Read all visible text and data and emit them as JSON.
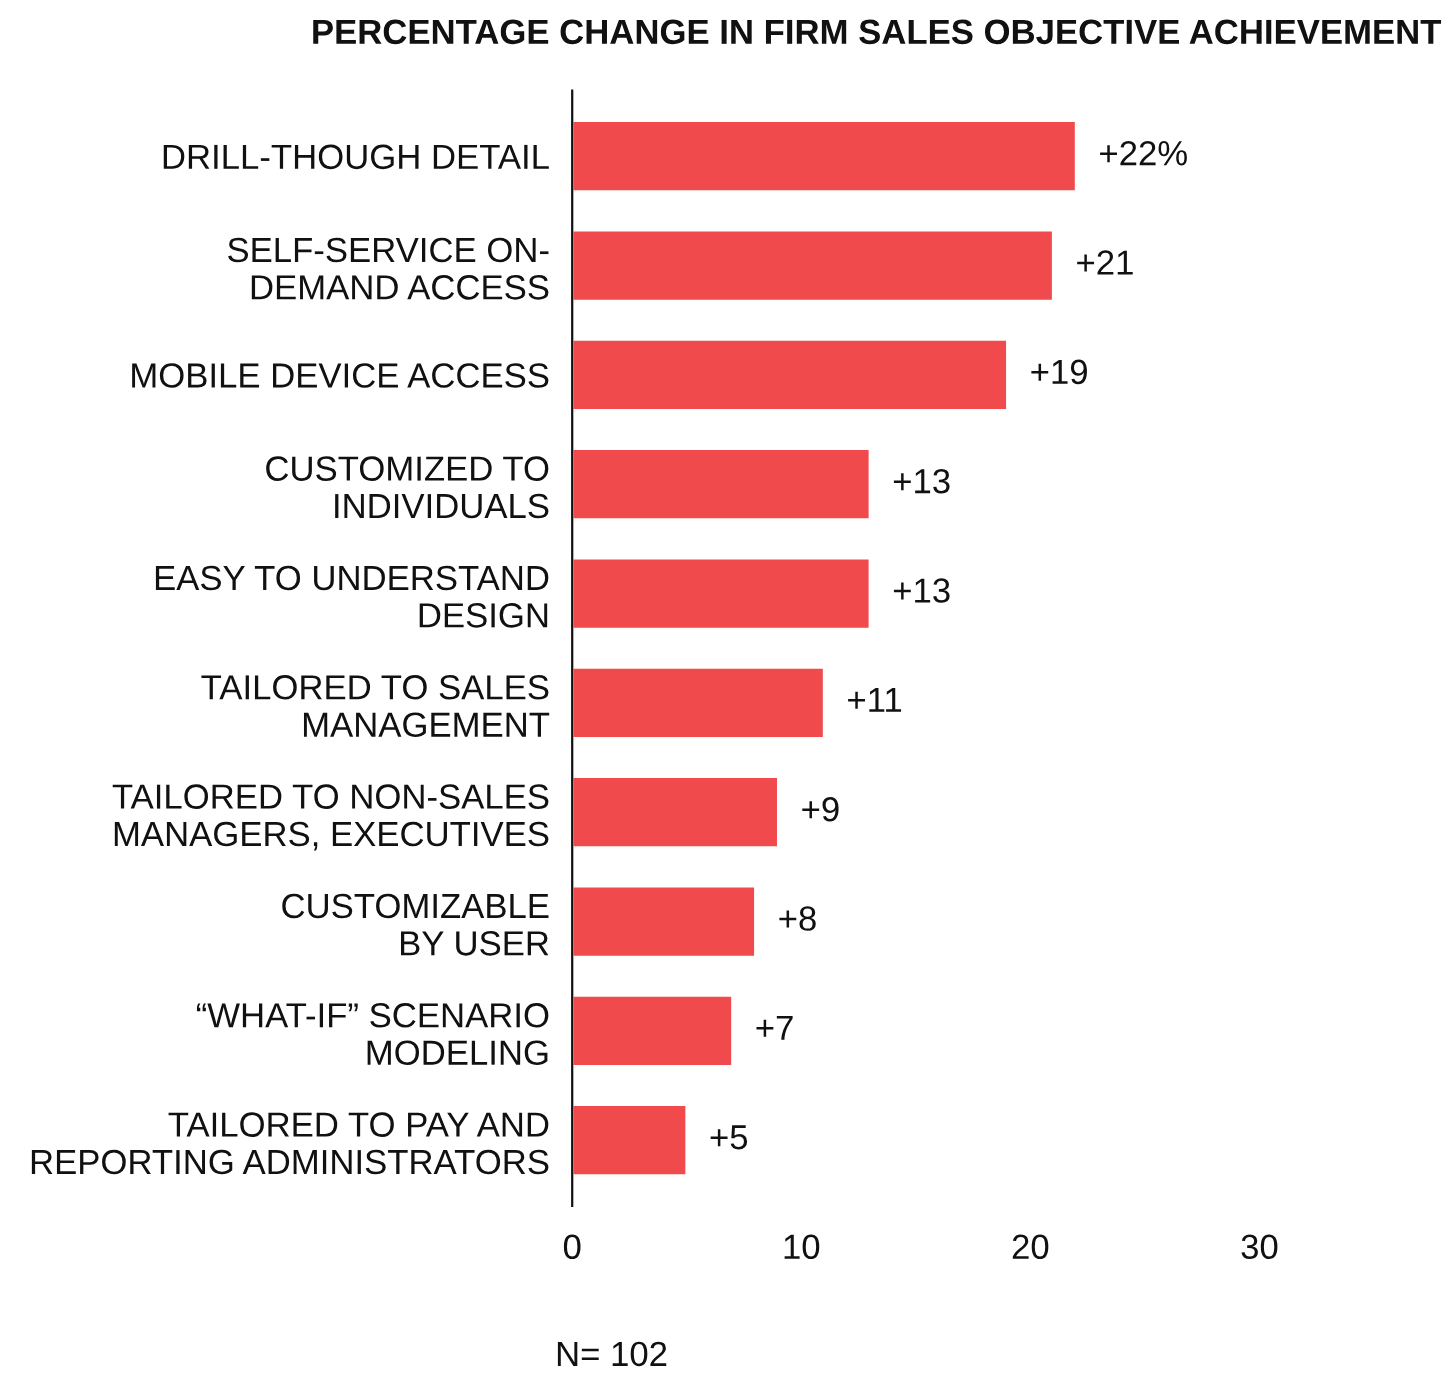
{
  "chart_data": {
    "type": "bar",
    "orientation": "horizontal",
    "title": "PERCENTAGE CHANGE IN FIRM SALES OBJECTIVE ACHIEVEMENT",
    "categories": [
      "DRILL-THOUGH DETAIL",
      "SELF-SERVICE ON-\nDEMAND ACCESS",
      "MOBILE DEVICE ACCESS",
      "CUSTOMIZED TO\nINDIVIDUALS",
      "EASY TO UNDERSTAND\nDESIGN",
      "TAILORED TO SALES\nMANAGEMENT",
      "TAILORED TO NON-SALES\nMANAGERS, EXECUTIVES",
      "CUSTOMIZABLE\nBY USER",
      "“WHAT-IF” SCENARIO\nMODELING",
      "TAILORED TO PAY AND\nREPORTING ADMINISTRATORS"
    ],
    "values": [
      22,
      21,
      19,
      13,
      13,
      11,
      9,
      8,
      7,
      5
    ],
    "value_labels": [
      "+22%",
      "+21",
      "+19",
      "+13",
      "+13",
      "+11",
      "+9",
      "+8",
      "+7",
      "+5"
    ],
    "color": "#f04a4c",
    "xlim": [
      0,
      30
    ],
    "xticks": [
      0,
      10,
      20,
      30
    ],
    "grid": false,
    "annotations": [
      "N= 102"
    ]
  }
}
